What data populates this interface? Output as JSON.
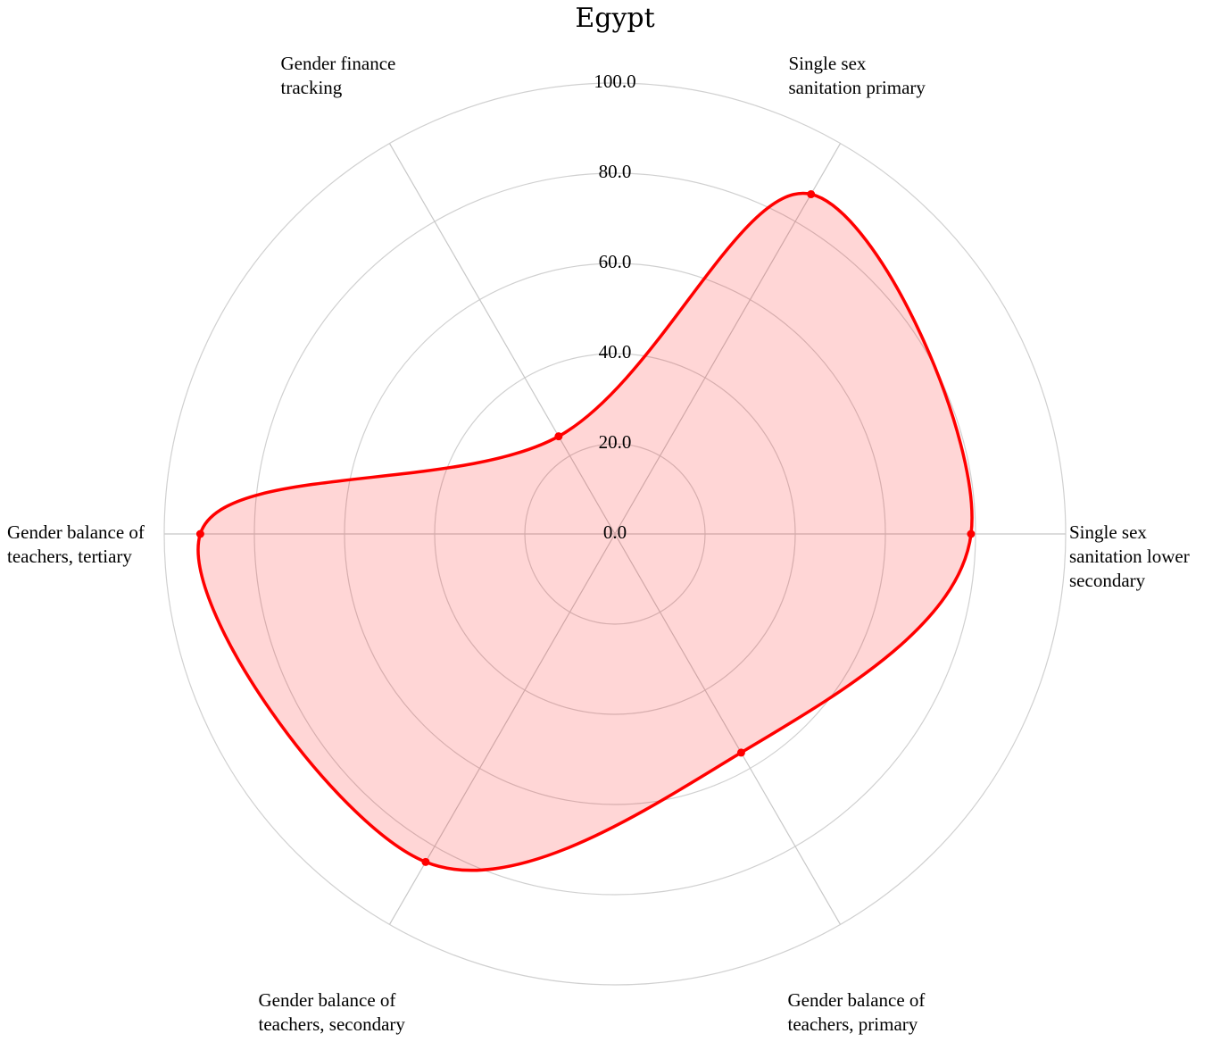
{
  "chart_data": {
    "type": "radar",
    "title": "Egypt",
    "axes": [
      "Single sex sanitation lower secondary",
      "Single sex sanitation primary",
      "Gender finance tracking",
      "Gender balance of teachers, tertiary",
      "Gender balance of teachers, secondary",
      "Gender balance of teachers, primary"
    ],
    "axis_label_lines": [
      [
        "Single sex",
        "sanitation lower",
        "secondary"
      ],
      [
        "Single sex",
        "sanitation primary"
      ],
      [
        "Gender finance",
        "tracking"
      ],
      [
        "Gender balance of",
        "teachers, tertiary"
      ],
      [
        "Gender balance of",
        "teachers, secondary"
      ],
      [
        "Gender balance of",
        "teachers, primary"
      ]
    ],
    "series": [
      {
        "values": [
          79,
          87,
          25,
          92,
          84,
          56
        ]
      }
    ],
    "rlim": [
      0,
      100
    ],
    "ticks": [
      "0.0",
      "20.0",
      "40.0",
      "60.0",
      "80.0",
      "100.0"
    ],
    "grid": true,
    "line_color": "#ff0000",
    "fill_color": "#ff0000",
    "fill_opacity": 0.16,
    "grid_color": "#d0d0d0"
  }
}
